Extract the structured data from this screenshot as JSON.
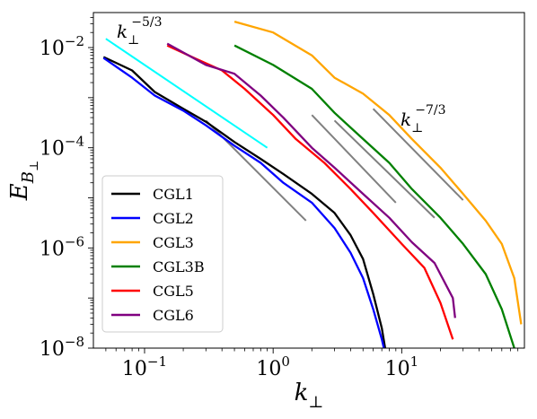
{
  "chart_data": {
    "type": "line",
    "xscale": "log",
    "yscale": "log",
    "xlim": [
      0.04,
      90
    ],
    "ylim": [
      1e-08,
      0.05
    ],
    "x_ticks": [
      {
        "value": 0.1,
        "label": "10",
        "exp": "−1"
      },
      {
        "value": 1,
        "label": "10",
        "exp": "0"
      },
      {
        "value": 10,
        "label": "10",
        "exp": "1"
      }
    ],
    "y_ticks": [
      {
        "value": 1e-08,
        "label": "10",
        "exp": "−8"
      },
      {
        "value": 1e-06,
        "label": "10",
        "exp": "−6"
      },
      {
        "value": 0.0001,
        "label": "10",
        "exp": "−4"
      },
      {
        "value": 0.01,
        "label": "10",
        "exp": "−2"
      }
    ],
    "xlabel": {
      "base": "k",
      "sub": "⊥"
    },
    "ylabel": {
      "base": "E",
      "sub": "B",
      "subsub": "⊥"
    },
    "legend_position": "lower-left",
    "series": [
      {
        "name": "CGL1",
        "color": "#000000",
        "points": [
          [
            0.048,
            0.0065
          ],
          [
            0.08,
            0.0035
          ],
          [
            0.12,
            0.0013
          ],
          [
            0.2,
            0.0006
          ],
          [
            0.3,
            0.00033
          ],
          [
            0.5,
            0.00013
          ],
          [
            0.8,
            6e-05
          ],
          [
            1.2,
            3e-05
          ],
          [
            2,
            1.2e-05
          ],
          [
            3,
            5e-06
          ],
          [
            4,
            1.8e-06
          ],
          [
            5,
            6e-07
          ],
          [
            6,
            1.2e-07
          ],
          [
            7,
            2.5e-08
          ],
          [
            7.6,
            7e-09
          ]
        ]
      },
      {
        "name": "CGL2",
        "color": "#0000ff",
        "points": [
          [
            0.048,
            0.0062
          ],
          [
            0.08,
            0.0025
          ],
          [
            0.12,
            0.0011
          ],
          [
            0.2,
            0.00055
          ],
          [
            0.3,
            0.00028
          ],
          [
            0.5,
            0.00011
          ],
          [
            0.8,
            5e-05
          ],
          [
            1.2,
            2e-05
          ],
          [
            2,
            8e-06
          ],
          [
            3,
            2.5e-06
          ],
          [
            4,
            8e-07
          ],
          [
            5,
            2.5e-07
          ],
          [
            6,
            6e-08
          ],
          [
            7,
            1.5e-08
          ],
          [
            7.5,
            7e-09
          ]
        ]
      },
      {
        "name": "CGL3",
        "color": "#ffa500",
        "points": [
          [
            0.5,
            0.033
          ],
          [
            1,
            0.02
          ],
          [
            2,
            0.007
          ],
          [
            3,
            0.0025
          ],
          [
            5,
            0.0012
          ],
          [
            8,
            0.00045
          ],
          [
            12,
            0.00015
          ],
          [
            20,
            4e-05
          ],
          [
            30,
            1.2e-05
          ],
          [
            45,
            3.5e-06
          ],
          [
            60,
            1.2e-06
          ],
          [
            75,
            2.5e-07
          ],
          [
            85,
            3e-08
          ]
        ]
      },
      {
        "name": "CGL3B",
        "color": "#008000",
        "points": [
          [
            0.5,
            0.011
          ],
          [
            1,
            0.0045
          ],
          [
            2,
            0.0015
          ],
          [
            3,
            0.0005
          ],
          [
            5,
            0.00015
          ],
          [
            8,
            5e-05
          ],
          [
            12,
            1.5e-05
          ],
          [
            20,
            4e-06
          ],
          [
            30,
            1.2e-06
          ],
          [
            45,
            3e-07
          ],
          [
            60,
            6e-08
          ],
          [
            75,
            1e-08
          ]
        ]
      },
      {
        "name": "CGL5",
        "color": "#ff0000",
        "points": [
          [
            0.15,
            0.011
          ],
          [
            0.25,
            0.006
          ],
          [
            0.4,
            0.0035
          ],
          [
            0.6,
            0.0015
          ],
          [
            1,
            0.00045
          ],
          [
            1.5,
            0.00015
          ],
          [
            2.5,
            5e-05
          ],
          [
            4,
            1.5e-05
          ],
          [
            6,
            5e-06
          ],
          [
            10,
            1.2e-06
          ],
          [
            15,
            4e-07
          ],
          [
            20,
            8e-08
          ],
          [
            25,
            1.5e-08
          ]
        ]
      },
      {
        "name": "CGL6",
        "color": "#800080",
        "points": [
          [
            0.15,
            0.012
          ],
          [
            0.3,
            0.0045
          ],
          [
            0.5,
            0.003
          ],
          [
            0.8,
            0.0011
          ],
          [
            1.2,
            0.0004
          ],
          [
            2,
            0.0001
          ],
          [
            3,
            4e-05
          ],
          [
            5,
            1.2e-05
          ],
          [
            8,
            4e-06
          ],
          [
            12,
            1.3e-06
          ],
          [
            18,
            5e-07
          ],
          [
            25,
            1e-07
          ],
          [
            26,
            4e-08
          ]
        ]
      }
    ],
    "reference_lines": [
      {
        "color": "#00ffff",
        "label": {
          "base": "k",
          "sub": "⊥",
          "exp": "−5/3"
        },
        "points": [
          [
            0.05,
            0.015
          ],
          [
            0.9,
            0.0001
          ]
        ]
      },
      {
        "color": "#808080",
        "points": [
          [
            0.3,
            0.00035
          ],
          [
            1.8,
            3.5e-06
          ]
        ]
      },
      {
        "color": "#808080",
        "points": [
          [
            2,
            0.00045
          ],
          [
            9,
            8e-06
          ]
        ]
      },
      {
        "color": "#808080",
        "points": [
          [
            3,
            0.00035
          ],
          [
            18,
            4e-06
          ]
        ]
      },
      {
        "color": "#808080",
        "label": {
          "base": "k",
          "sub": "⊥",
          "exp": "−7/3"
        },
        "points": [
          [
            6,
            0.0006
          ],
          [
            30,
            9e-06
          ]
        ]
      }
    ]
  }
}
